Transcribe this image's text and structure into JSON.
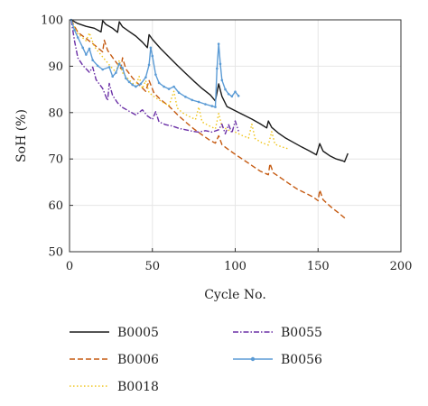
{
  "chart_data": {
    "type": "line",
    "title": "",
    "xlabel": "Cycle No.",
    "ylabel": "SoH (%)",
    "xlim": [
      0,
      200
    ],
    "ylim": [
      50,
      100
    ],
    "xticks": [
      0,
      50,
      100,
      150,
      200
    ],
    "yticks": [
      50,
      60,
      70,
      80,
      90,
      100
    ],
    "grid": true,
    "legend": "bottom",
    "series": [
      {
        "name": "B0005",
        "color": "#1a1a1a",
        "style": "solid",
        "points": [
          [
            1,
            100
          ],
          [
            5,
            99.2
          ],
          [
            10,
            98.6
          ],
          [
            15,
            98.2
          ],
          [
            19,
            97.4
          ],
          [
            20,
            99.8
          ],
          [
            22,
            99.0
          ],
          [
            26,
            98.2
          ],
          [
            29,
            97.3
          ],
          [
            30,
            99.6
          ],
          [
            32,
            98.5
          ],
          [
            36,
            97.5
          ],
          [
            40,
            96.5
          ],
          [
            44,
            95.2
          ],
          [
            47,
            94.0
          ],
          [
            48,
            96.8
          ],
          [
            50,
            95.8
          ],
          [
            55,
            93.8
          ],
          [
            60,
            92.0
          ],
          [
            65,
            90.2
          ],
          [
            70,
            88.5
          ],
          [
            75,
            86.8
          ],
          [
            80,
            85.2
          ],
          [
            85,
            83.8
          ],
          [
            88,
            82.5
          ],
          [
            90,
            86.2
          ],
          [
            92,
            83.5
          ],
          [
            95,
            81.3
          ],
          [
            100,
            80.4
          ],
          [
            105,
            79.5
          ],
          [
            110,
            78.6
          ],
          [
            115,
            77.6
          ],
          [
            119,
            76.7
          ],
          [
            120,
            78.2
          ],
          [
            122,
            76.8
          ],
          [
            126,
            75.6
          ],
          [
            130,
            74.6
          ],
          [
            135,
            73.6
          ],
          [
            140,
            72.6
          ],
          [
            145,
            71.7
          ],
          [
            149,
            70.9
          ],
          [
            151,
            73.3
          ],
          [
            153,
            71.7
          ],
          [
            157,
            70.7
          ],
          [
            161,
            70.0
          ],
          [
            165,
            69.6
          ],
          [
            166,
            69.4
          ],
          [
            168,
            71.2
          ]
        ]
      },
      {
        "name": "B0006",
        "color": "#c55a11",
        "style": "dashed",
        "points": [
          [
            1,
            100
          ],
          [
            5,
            97.3
          ],
          [
            10,
            96.0
          ],
          [
            15,
            94.6
          ],
          [
            20,
            93.1
          ],
          [
            21,
            95.6
          ],
          [
            23,
            93.4
          ],
          [
            27,
            91.4
          ],
          [
            31,
            89.5
          ],
          [
            32,
            91.8
          ],
          [
            34,
            89.4
          ],
          [
            38,
            87.5
          ],
          [
            42,
            86.0
          ],
          [
            46,
            84.6
          ],
          [
            48,
            86.9
          ],
          [
            51,
            84.2
          ],
          [
            55,
            82.8
          ],
          [
            60,
            81.4
          ],
          [
            65,
            79.6
          ],
          [
            70,
            78.0
          ],
          [
            75,
            76.5
          ],
          [
            80,
            75.2
          ],
          [
            84,
            74.2
          ],
          [
            88,
            73.4
          ],
          [
            90,
            75.0
          ],
          [
            92,
            73.1
          ],
          [
            96,
            72.0
          ],
          [
            100,
            71.0
          ],
          [
            105,
            69.8
          ],
          [
            110,
            68.6
          ],
          [
            115,
            67.4
          ],
          [
            120,
            66.6
          ],
          [
            121,
            69.0
          ],
          [
            123,
            67.0
          ],
          [
            128,
            65.8
          ],
          [
            132,
            64.8
          ],
          [
            137,
            63.6
          ],
          [
            142,
            62.7
          ],
          [
            147,
            61.8
          ],
          [
            150,
            61.0
          ],
          [
            151,
            63.3
          ],
          [
            153,
            61.2
          ],
          [
            158,
            59.6
          ],
          [
            163,
            58.2
          ],
          [
            167,
            57.0
          ]
        ]
      },
      {
        "name": "B0018",
        "color": "#f0c419",
        "style": "dotted",
        "points": [
          [
            1,
            100
          ],
          [
            5,
            97.0
          ],
          [
            10,
            95.5
          ],
          [
            12,
            97.2
          ],
          [
            15,
            94.2
          ],
          [
            20,
            92.0
          ],
          [
            24,
            90.3
          ],
          [
            28,
            88.7
          ],
          [
            30,
            91.3
          ],
          [
            32,
            88.6
          ],
          [
            36,
            87.0
          ],
          [
            40,
            85.7
          ],
          [
            42,
            87.8
          ],
          [
            44,
            85.2
          ],
          [
            46,
            86.9
          ],
          [
            48,
            84.3
          ],
          [
            52,
            83.2
          ],
          [
            56,
            82.3
          ],
          [
            60,
            81.5
          ],
          [
            63,
            84.6
          ],
          [
            65,
            81.0
          ],
          [
            68,
            80.0
          ],
          [
            72,
            79.2
          ],
          [
            76,
            78.5
          ],
          [
            78,
            81.2
          ],
          [
            80,
            78.0
          ],
          [
            84,
            77.2
          ],
          [
            88,
            76.5
          ],
          [
            90,
            79.8
          ],
          [
            92,
            77.0
          ],
          [
            96,
            76.2
          ],
          [
            100,
            75.8
          ],
          [
            104,
            75.1
          ],
          [
            108,
            74.5
          ],
          [
            110,
            77.5
          ],
          [
            112,
            74.4
          ],
          [
            116,
            73.5
          ],
          [
            120,
            73.0
          ],
          [
            122,
            75.9
          ],
          [
            124,
            73.2
          ],
          [
            128,
            72.6
          ],
          [
            132,
            72.2
          ]
        ]
      },
      {
        "name": "B0055",
        "color": "#6a2fa6",
        "style": "dashdot",
        "points": [
          [
            1,
            100
          ],
          [
            3,
            95.5
          ],
          [
            5,
            91.8
          ],
          [
            8,
            90.2
          ],
          [
            12,
            88.7
          ],
          [
            14,
            89.8
          ],
          [
            16,
            87.1
          ],
          [
            20,
            85.2
          ],
          [
            22,
            83.4
          ],
          [
            23,
            82.6
          ],
          [
            24,
            86.3
          ],
          [
            26,
            83.7
          ],
          [
            29,
            82.1
          ],
          [
            32,
            81.1
          ],
          [
            36,
            80.3
          ],
          [
            40,
            79.5
          ],
          [
            44,
            80.6
          ],
          [
            47,
            79.3
          ],
          [
            50,
            78.5
          ],
          [
            52,
            80.2
          ],
          [
            54,
            78.0
          ],
          [
            58,
            77.4
          ],
          [
            62,
            77.1
          ],
          [
            66,
            76.6
          ],
          [
            70,
            76.3
          ],
          [
            74,
            76.0
          ],
          [
            78,
            75.8
          ],
          [
            82,
            76.1
          ],
          [
            86,
            75.8
          ],
          [
            90,
            76.3
          ],
          [
            92,
            77.5
          ],
          [
            94,
            75.4
          ],
          [
            96,
            77.4
          ],
          [
            98,
            75.6
          ],
          [
            100,
            78.2
          ],
          [
            102,
            76.0
          ]
        ]
      },
      {
        "name": "B0056",
        "color": "#5b9bd5",
        "style": "solid-marker",
        "points": [
          [
            1,
            100
          ],
          [
            3,
            97.8
          ],
          [
            5,
            96.2
          ],
          [
            8,
            94.0
          ],
          [
            10,
            92.5
          ],
          [
            12,
            93.8
          ],
          [
            14,
            91.3
          ],
          [
            17,
            90.1
          ],
          [
            20,
            89.3
          ],
          [
            24,
            89.8
          ],
          [
            26,
            87.8
          ],
          [
            28,
            88.6
          ],
          [
            30,
            90.5
          ],
          [
            32,
            89.6
          ],
          [
            34,
            87.4
          ],
          [
            36,
            86.6
          ],
          [
            38,
            86.0
          ],
          [
            40,
            85.6
          ],
          [
            43,
            86.2
          ],
          [
            46,
            87.6
          ],
          [
            48,
            90.3
          ],
          [
            49,
            94.0
          ],
          [
            50,
            92.2
          ],
          [
            52,
            88.2
          ],
          [
            54,
            86.4
          ],
          [
            57,
            85.6
          ],
          [
            60,
            85.1
          ],
          [
            63,
            85.6
          ],
          [
            66,
            84.3
          ],
          [
            70,
            83.4
          ],
          [
            74,
            82.7
          ],
          [
            78,
            82.3
          ],
          [
            82,
            81.8
          ],
          [
            86,
            81.4
          ],
          [
            88,
            81.2
          ],
          [
            89,
            89.5
          ],
          [
            90,
            94.8
          ],
          [
            91,
            90.5
          ],
          [
            92,
            87.0
          ],
          [
            94,
            85.0
          ],
          [
            96,
            84.0
          ],
          [
            98,
            83.5
          ],
          [
            100,
            84.5
          ],
          [
            102,
            83.6
          ]
        ]
      }
    ]
  }
}
